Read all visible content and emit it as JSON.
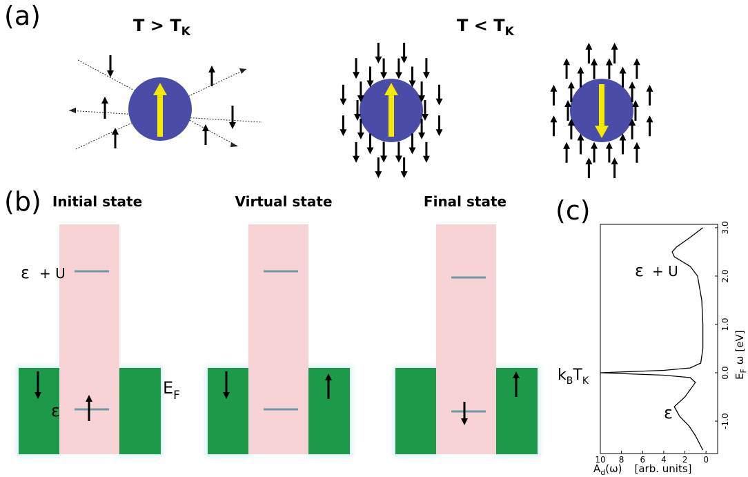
{
  "panel_a": {
    "label": "(a)",
    "high_T": {
      "text": "T > T",
      "sub": "K"
    },
    "low_T": {
      "text": "T < T",
      "sub": "K"
    }
  },
  "panel_b": {
    "label": "(b)",
    "states": [
      "Initial state",
      "Virtual state",
      "Final state"
    ],
    "upper_level": {
      "symbol": "ε",
      "suffix": "+ U"
    },
    "lower_level": "ε",
    "fermi": {
      "text": "E",
      "sub": "F"
    }
  },
  "chart_data": {
    "type": "line",
    "panel_label": "(c)",
    "orientation": "rotated",
    "color": "#000000",
    "x": [
      3.0,
      2.8,
      2.6,
      2.5,
      2.4,
      2.2,
      2.0,
      1.5,
      1.0,
      0.5,
      0.2,
      0.1,
      0.05,
      0.0,
      -0.05,
      -0.1,
      -0.2,
      -0.5,
      -0.7,
      -0.9,
      -1.1,
      -1.3,
      -1.6
    ],
    "values": [
      0.3,
      1.5,
      2.8,
      3.2,
      3.0,
      1.5,
      0.8,
      0.4,
      0.3,
      0.3,
      0.5,
      1.5,
      4.0,
      10.0,
      4.0,
      1.5,
      1.0,
      2.0,
      3.0,
      2.5,
      1.6,
      1.0,
      0.3
    ],
    "xlim": [
      -1.67,
      3.07
    ],
    "xticks": [
      {
        "value": -1.0,
        "label": "-1.0"
      },
      {
        "value": 0.0,
        "label": "0.0"
      },
      {
        "value": 1.0,
        "label": "1.0"
      },
      {
        "value": 2.0,
        "label": "2.0"
      },
      {
        "value": 3.0,
        "label": "3.0"
      }
    ],
    "ylim": [
      10,
      -1.1
    ],
    "yticks": [
      10,
      8,
      6,
      4,
      2,
      0
    ],
    "xlabel": {
      "text": "E",
      "sub": "F",
      "rest": "ω",
      "units": "[eV]"
    },
    "ylabel": {
      "text": "A",
      "sub": "d",
      "rest": "(ω)",
      "units": "[arb. units]"
    },
    "annotations": [
      {
        "text": "ε",
        "suffix": "+ U"
      },
      {
        "text": "ε"
      },
      {
        "text": "k",
        "sub": "B",
        "text2": "T",
        "sub2": "K"
      }
    ]
  }
}
